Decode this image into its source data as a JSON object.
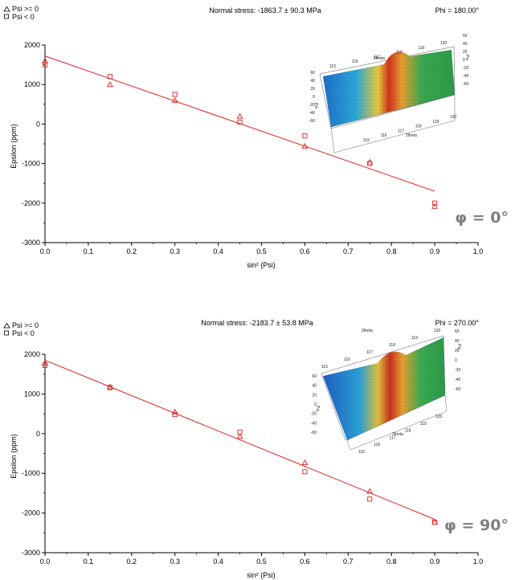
{
  "panels": [
    {
      "legend": {
        "pos_label": "Psi >= 0",
        "neg_label": "Psi <  0"
      },
      "stress_text": "Normal stress: -1863.7 ± 90.3 MPa",
      "phi_text": "Phi = 180.00°",
      "phi_tag": "φ = 0°",
      "inset": {
        "axis_title": "2theta",
        "z_label": "Psi",
        "ticks_2theta": [
          "115",
          "116",
          "117",
          "118",
          "119",
          "120"
        ],
        "ticks_psi": [
          "60",
          "40",
          "20",
          "0",
          "-20",
          "-40",
          "-60"
        ]
      }
    },
    {
      "legend": {
        "pos_label": "Psi >= 0",
        "neg_label": "Psi <  0"
      },
      "stress_text": "Normal stress: -2183.7 ± 53.8 MPa",
      "phi_text": "Phi = 270.00°",
      "phi_tag": "φ = 90°",
      "inset": {
        "axis_title": "2theta",
        "z_label": "Psi",
        "ticks_2theta": [
          "115",
          "116",
          "117",
          "118",
          "119",
          "120"
        ],
        "ticks_psi": [
          "60",
          "40",
          "20",
          "0",
          "-20",
          "-40",
          "-60"
        ]
      }
    }
  ],
  "chart_data": [
    {
      "type": "scatter",
      "title": "Normal stress: -1863.7 ± 90.3 MPa",
      "xlabel": "sin² (Psi)",
      "ylabel": "Epsilon (ppm)",
      "xlim": [
        0,
        1
      ],
      "ylim": [
        -3000,
        2000
      ],
      "x_ticks": [
        "0.0",
        "0.1",
        "0.2",
        "0.3",
        "0.4",
        "0.5",
        "0.6",
        "0.7",
        "0.8",
        "0.9",
        "1.0"
      ],
      "y_ticks": [
        "2000",
        "1000",
        "0",
        "-1000",
        "-2000",
        "-3000"
      ],
      "series": [
        {
          "name": "Psi >= 0",
          "marker": "triangle",
          "x": [
            0.0,
            0.15,
            0.3,
            0.45,
            0.6,
            0.75,
            0.9
          ],
          "y": [
            1600,
            1000,
            600,
            200,
            -560,
            -960,
            -2080
          ]
        },
        {
          "name": "Psi <  0",
          "marker": "square",
          "x": [
            0.0,
            0.15,
            0.3,
            0.45,
            0.6,
            0.75,
            0.9
          ],
          "y": [
            1500,
            1200,
            750,
            50,
            -300,
            -1000,
            -2000
          ]
        }
      ],
      "fit_line": {
        "x": [
          0.0,
          0.9
        ],
        "y": [
          1720,
          -1700
        ]
      },
      "color": "#e02020"
    },
    {
      "type": "scatter",
      "title": "Normal stress: -2183.7 ± 53.8 MPa",
      "xlabel": "sin² (Psi)",
      "ylabel": "Epsilon (ppm)",
      "xlim": [
        0,
        1
      ],
      "ylim": [
        -3000,
        2000
      ],
      "x_ticks": [
        "0.0",
        "0.1",
        "0.2",
        "0.3",
        "0.4",
        "0.5",
        "0.6",
        "0.7",
        "0.8",
        "0.9",
        "1.0"
      ],
      "y_ticks": [
        "2000",
        "1000",
        "0",
        "-1000",
        "-2000",
        "-3000"
      ],
      "series": [
        {
          "name": "Psi >= 0",
          "marker": "triangle",
          "x": [
            0.0,
            0.15,
            0.3,
            0.45,
            0.6,
            0.75,
            0.9
          ],
          "y": [
            1780,
            1180,
            550,
            -70,
            -730,
            -1450,
            -2230
          ]
        },
        {
          "name": "Psi <  0",
          "marker": "square",
          "x": [
            0.0,
            0.15,
            0.3,
            0.45,
            0.6,
            0.75,
            0.9
          ],
          "y": [
            1720,
            1160,
            480,
            40,
            -960,
            -1650,
            -2230
          ]
        }
      ],
      "fit_line": {
        "x": [
          0.0,
          0.9
        ],
        "y": [
          1850,
          -2160
        ]
      },
      "color": "#e02020"
    }
  ]
}
